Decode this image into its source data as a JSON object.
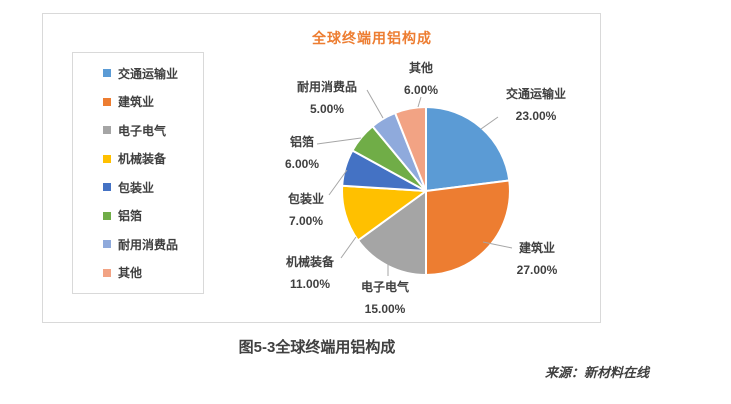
{
  "page": {
    "caption": "图5-3全球终端用铝构成",
    "source": "来源：新材料在线"
  },
  "chart_data": {
    "type": "pie",
    "title": "全球终端用铝构成",
    "title_color": "#ED7D31",
    "legend_position": "left",
    "start_angle_deg": 0,
    "direction": "clockwise",
    "slices": [
      {
        "name": "交通运输业",
        "value": 23,
        "label": "23.00%",
        "color": "#5B9BD5"
      },
      {
        "name": "建筑业",
        "value": 27,
        "label": "27.00%",
        "color": "#ED7D31"
      },
      {
        "name": "电子电气",
        "value": 15,
        "label": "15.00%",
        "color": "#A5A5A5"
      },
      {
        "name": "机械装备",
        "value": 11,
        "label": "11.00%",
        "color": "#FFC000"
      },
      {
        "name": "包装业",
        "value": 7,
        "label": "7.00%",
        "color": "#4472C4"
      },
      {
        "name": "铝箔",
        "value": 6,
        "label": "6.00%",
        "color": "#70AD47"
      },
      {
        "name": "耐用消费品",
        "value": 5,
        "label": "5.00%",
        "color": "#8FAADC"
      },
      {
        "name": "其他",
        "value": 6,
        "label": "6.00%",
        "color": "#F2A384"
      }
    ]
  }
}
